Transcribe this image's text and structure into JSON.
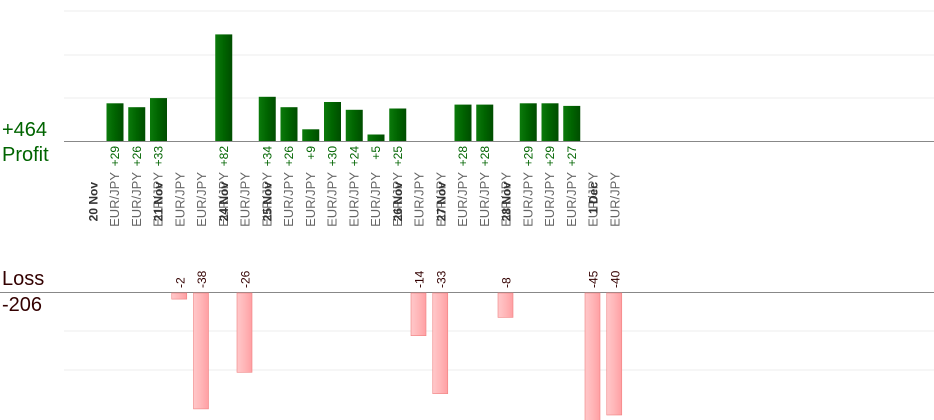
{
  "summary": {
    "profit_total": "+464",
    "profit_label": "Profit",
    "loss_label": "Loss",
    "loss_total": "-206"
  },
  "colors": {
    "profit_bar": "#006400",
    "profit_text": "#006400",
    "loss_bar": "#ffb6b8",
    "loss_bar_edge": "#f08080",
    "loss_text": "#330000",
    "axis": "#888888",
    "grid": "#eeeeee"
  },
  "chart_data": {
    "type": "bar",
    "grid": true,
    "entries": [
      {
        "label": "EUR/JPY",
        "value": 29
      },
      {
        "label": "EUR/JPY",
        "value": 26
      },
      {
        "label": "EUR/JPY",
        "value": 33
      },
      {
        "label": "EUR/JPY",
        "value": -2
      },
      {
        "label": "EUR/JPY",
        "value": -38
      },
      {
        "label": "EUR/JPY",
        "value": 82
      },
      {
        "label": "EUR/JPY",
        "value": -26
      },
      {
        "label": "EUR/JPY",
        "value": 34
      },
      {
        "label": "EUR/JPY",
        "value": 26
      },
      {
        "label": "EUR/JPY",
        "value": 9
      },
      {
        "label": "EUR/JPY",
        "value": 30
      },
      {
        "label": "EUR/JPY",
        "value": 24
      },
      {
        "label": "EUR/JPY",
        "value": 5
      },
      {
        "label": "EUR/JPY",
        "value": 25
      },
      {
        "label": "EUR/JPY",
        "value": -14
      },
      {
        "label": "EUR/JPY",
        "value": -33
      },
      {
        "label": "EUR/JPY",
        "value": 28
      },
      {
        "label": "EUR/JPY",
        "value": 28
      },
      {
        "label": "EUR/JPY",
        "value": -8
      },
      {
        "label": "EUR/JPY",
        "value": 29
      },
      {
        "label": "EUR/JPY",
        "value": 29
      },
      {
        "label": "EUR/JPY",
        "value": 27
      },
      {
        "label": "EUR/JPY",
        "value": -45
      },
      {
        "label": "EUR/JPY",
        "value": -40
      }
    ],
    "profit_labels": [
      "+29",
      "+26",
      "+33",
      "",
      "",
      "+82",
      "",
      "+34",
      "+26",
      "+9",
      "+30",
      "+24",
      "+5",
      "+25",
      "",
      "",
      "+28",
      "+28",
      "",
      "+29",
      "+29",
      "+27",
      "",
      ""
    ],
    "loss_labels": [
      "",
      "",
      "",
      "-2",
      "-38",
      "",
      "-26",
      "",
      "",
      "",
      "",
      "",
      "",
      "",
      "-14",
      "-33",
      "",
      "",
      "-8",
      "",
      "",
      "",
      "-45",
      "-40"
    ],
    "date_groups": [
      {
        "date": "20 Nov",
        "start": 0,
        "count": 3
      },
      {
        "date": "21 Nov",
        "start": 3,
        "count": 3
      },
      {
        "date": "24 Nov",
        "start": 6,
        "count": 2
      },
      {
        "date": "25 Nov",
        "start": 8,
        "count": 6
      },
      {
        "date": "26 Nov",
        "start": 14,
        "count": 2
      },
      {
        "date": "27 Nov",
        "start": 16,
        "count": 3
      },
      {
        "date": "28 Nov",
        "start": 19,
        "count": 4
      },
      {
        "date": "1 Dec",
        "start": 23,
        "count": 1
      }
    ]
  }
}
